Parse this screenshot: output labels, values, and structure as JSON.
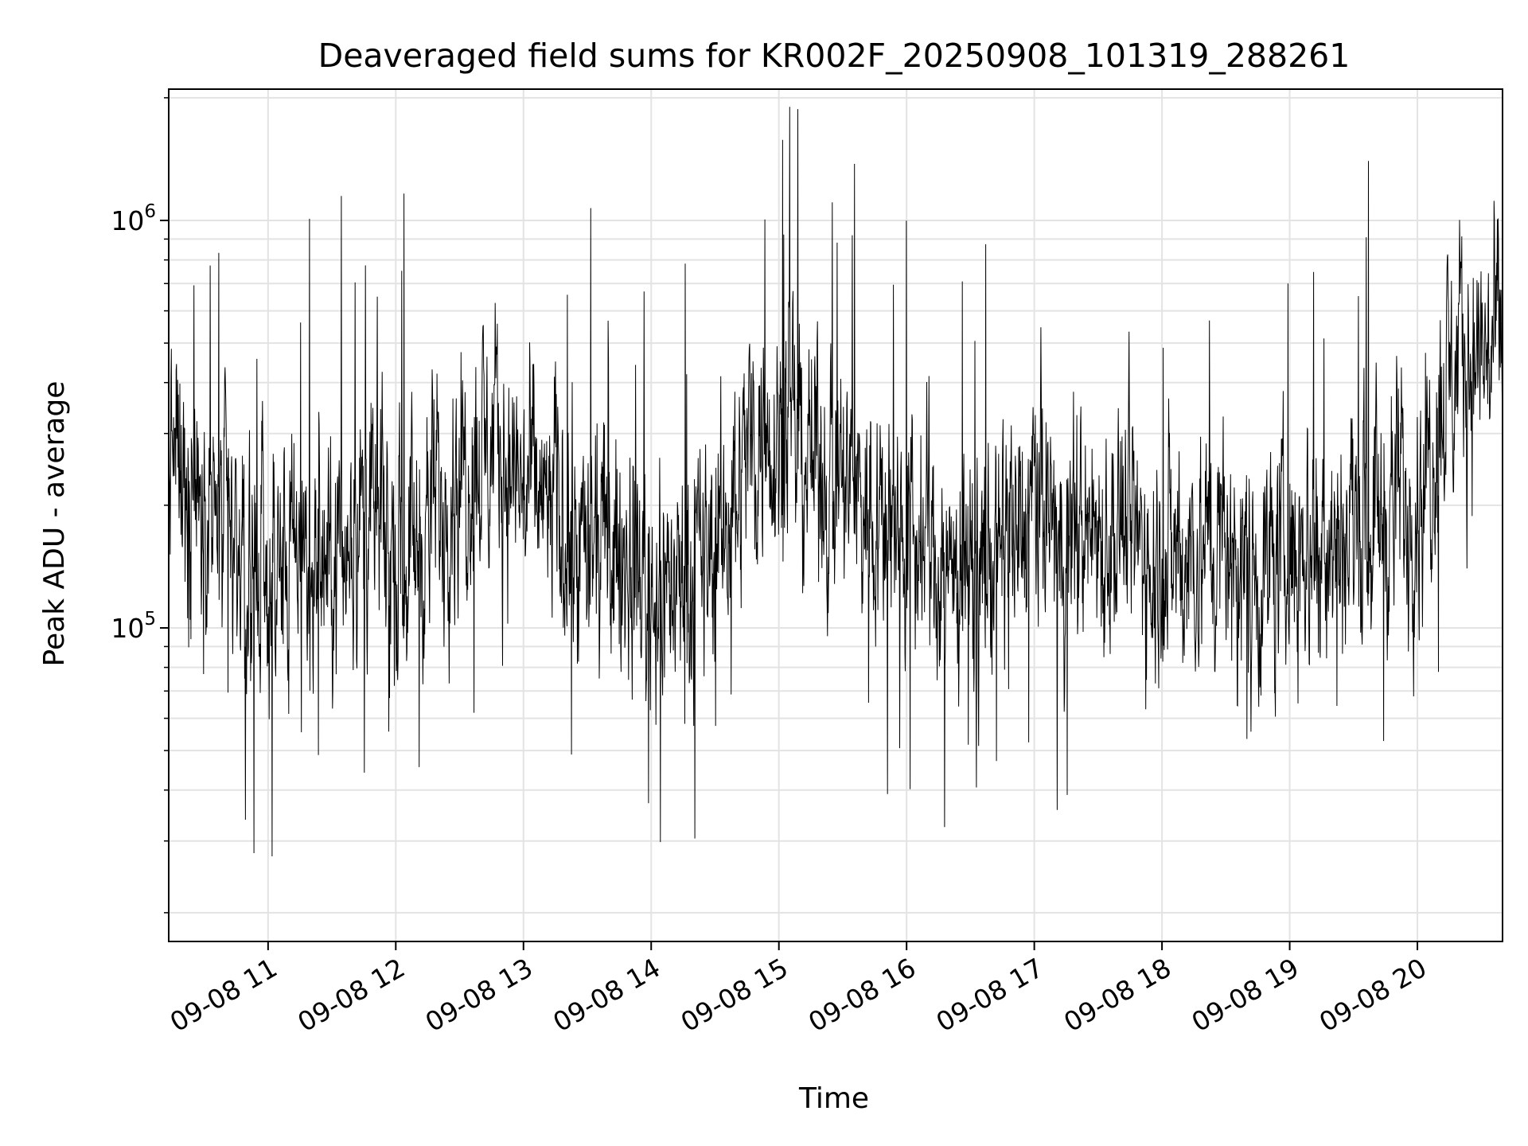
{
  "chart_data": {
    "type": "line",
    "title": "Deaveraged field sums for KR002F_20250908_101319_288261",
    "xlabel": "Time",
    "ylabel": "Peak ADU - average",
    "yscale": "log",
    "ylim": [
      17000,
      2100000
    ],
    "xlim": [
      "2025-09-08 10:13:19",
      "2025-09-08 20:40:00"
    ],
    "grid": true,
    "line_color": "#000000",
    "x_ticks": [
      "09-08 11",
      "09-08 12",
      "09-08 13",
      "09-08 14",
      "09-08 15",
      "09-08 16",
      "09-08 17",
      "09-08 18",
      "09-08 19",
      "09-08 20"
    ],
    "y_ticks": [
      {
        "base": "10",
        "exp": "5",
        "value": 100000
      },
      {
        "base": "10",
        "exp": "6",
        "value": 1000000
      }
    ],
    "series": [
      {
        "x": [
          "2025-09-08 10:15",
          "2025-09-08 10:30",
          "2025-09-08 10:45",
          "2025-09-08 11:00",
          "2025-09-08 11:15",
          "2025-09-08 11:30",
          "2025-09-08 11:45",
          "2025-09-08 12:00",
          "2025-09-08 12:15",
          "2025-09-08 12:30",
          "2025-09-08 12:45",
          "2025-09-08 13:00",
          "2025-09-08 13:15",
          "2025-09-08 13:30",
          "2025-09-08 13:45",
          "2025-09-08 14:00",
          "2025-09-08 14:15",
          "2025-09-08 14:30",
          "2025-09-08 14:45",
          "2025-09-08 15:00",
          "2025-09-08 15:15",
          "2025-09-08 15:30",
          "2025-09-08 15:45",
          "2025-09-08 16:00",
          "2025-09-08 16:15",
          "2025-09-08 16:30",
          "2025-09-08 16:45",
          "2025-09-08 17:00",
          "2025-09-08 17:15",
          "2025-09-08 17:30",
          "2025-09-08 17:45",
          "2025-09-08 18:00",
          "2025-09-08 18:15",
          "2025-09-08 18:30",
          "2025-09-08 18:45",
          "2025-09-08 19:00",
          "2025-09-08 19:15",
          "2025-09-08 19:30",
          "2025-09-08 19:45",
          "2025-09-08 20:00",
          "2025-09-08 20:15",
          "2025-09-08 20:30",
          "2025-09-08 20:40"
        ],
        "y": [
          270000,
          200000,
          150000,
          130000,
          150000,
          140000,
          200000,
          150000,
          180000,
          250000,
          280000,
          220000,
          190000,
          150000,
          150000,
          130000,
          130000,
          150000,
          280000,
          330000,
          260000,
          220000,
          200000,
          170000,
          150000,
          130000,
          150000,
          200000,
          170000,
          180000,
          170000,
          150000,
          160000,
          150000,
          140000,
          150000,
          180000,
          180000,
          200000,
          210000,
          420000,
          470000,
          480000
        ]
      }
    ]
  }
}
